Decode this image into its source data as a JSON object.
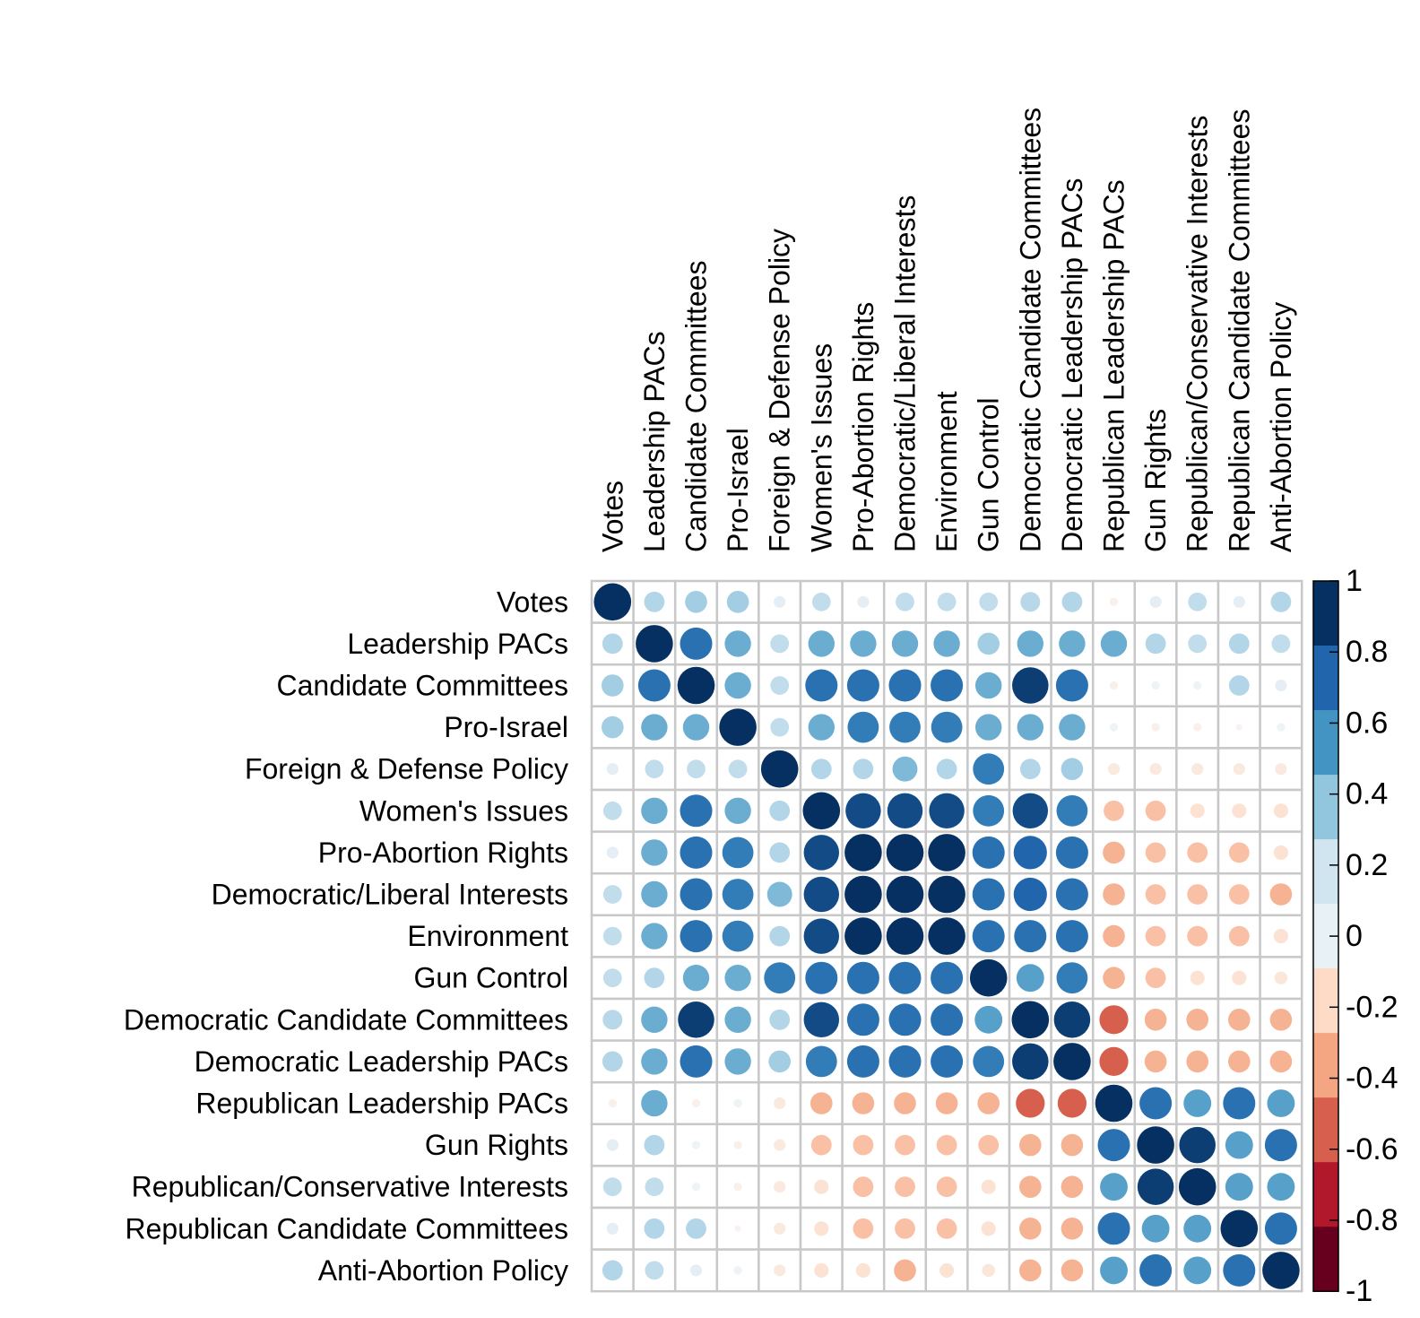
{
  "chart_data": {
    "type": "heatmap",
    "style": "correlation-circle-matrix",
    "title": "",
    "variables": [
      "Votes",
      "Leadership PACs",
      "Candidate Committees",
      "Pro-Israel",
      "Foreign & Defense Policy",
      "Women's Issues",
      "Pro-Abortion Rights",
      "Democratic/Liberal Interests",
      "Environment",
      "Gun Control",
      "Democratic Candidate Committees",
      "Democratic Leadership PACs",
      "Republican Leadership PACs",
      "Gun Rights",
      "Republican/Conservative Interests",
      "Republican Candidate Committees",
      "Anti-Abortion Policy"
    ],
    "matrix": [
      [
        1.0,
        0.3,
        0.35,
        0.35,
        0.1,
        0.25,
        0.1,
        0.25,
        0.25,
        0.25,
        0.28,
        0.3,
        -0.05,
        0.1,
        0.25,
        0.1,
        0.3
      ],
      [
        0.3,
        1.0,
        0.75,
        0.5,
        0.25,
        0.5,
        0.5,
        0.5,
        0.5,
        0.35,
        0.5,
        0.5,
        0.5,
        0.3,
        0.25,
        0.3,
        0.25
      ],
      [
        0.35,
        0.75,
        1.0,
        0.5,
        0.25,
        0.75,
        0.75,
        0.75,
        0.75,
        0.5,
        0.95,
        0.75,
        -0.05,
        0.05,
        0.05,
        0.3,
        0.1
      ],
      [
        0.35,
        0.5,
        0.5,
        1.0,
        0.25,
        0.5,
        0.7,
        0.7,
        0.7,
        0.5,
        0.5,
        0.5,
        0.05,
        -0.05,
        -0.05,
        -0.03,
        0.05
      ],
      [
        0.1,
        0.25,
        0.25,
        0.25,
        1.0,
        0.3,
        0.3,
        0.45,
        0.3,
        0.7,
        0.3,
        0.35,
        -0.1,
        -0.1,
        -0.1,
        -0.1,
        -0.1
      ],
      [
        0.25,
        0.5,
        0.75,
        0.5,
        0.3,
        1.0,
        0.9,
        0.9,
        0.9,
        0.7,
        0.9,
        0.7,
        -0.3,
        -0.3,
        -0.15,
        -0.15,
        -0.15
      ],
      [
        0.1,
        0.5,
        0.75,
        0.7,
        0.3,
        0.9,
        1.0,
        1.0,
        1.0,
        0.75,
        0.8,
        0.75,
        -0.35,
        -0.3,
        -0.3,
        -0.3,
        -0.15
      ],
      [
        0.25,
        0.5,
        0.75,
        0.7,
        0.45,
        0.9,
        1.0,
        1.0,
        1.0,
        0.75,
        0.8,
        0.75,
        -0.35,
        -0.3,
        -0.3,
        -0.3,
        -0.35
      ],
      [
        0.25,
        0.5,
        0.75,
        0.7,
        0.3,
        0.9,
        1.0,
        1.0,
        1.0,
        0.75,
        0.75,
        0.75,
        -0.35,
        -0.3,
        -0.3,
        -0.3,
        -0.15
      ],
      [
        0.25,
        0.3,
        0.5,
        0.5,
        0.7,
        0.75,
        0.75,
        0.75,
        0.75,
        1.0,
        0.55,
        0.7,
        -0.35,
        -0.3,
        -0.15,
        -0.15,
        -0.12
      ],
      [
        0.28,
        0.5,
        0.95,
        0.5,
        0.3,
        0.9,
        0.75,
        0.75,
        0.75,
        0.55,
        1.0,
        0.95,
        -0.6,
        -0.35,
        -0.35,
        -0.35,
        -0.35
      ],
      [
        0.3,
        0.5,
        0.75,
        0.5,
        0.35,
        0.7,
        0.75,
        0.75,
        0.75,
        0.7,
        0.95,
        1.0,
        -0.6,
        -0.35,
        -0.35,
        -0.35,
        -0.35
      ],
      [
        -0.05,
        0.5,
        -0.05,
        0.05,
        -0.1,
        -0.35,
        -0.35,
        -0.35,
        -0.35,
        -0.35,
        -0.6,
        -0.6,
        1.0,
        0.75,
        0.55,
        0.75,
        0.55
      ],
      [
        0.1,
        0.3,
        0.05,
        -0.05,
        -0.1,
        -0.3,
        -0.3,
        -0.3,
        -0.3,
        -0.3,
        -0.35,
        -0.35,
        0.75,
        1.0,
        0.95,
        0.55,
        0.75
      ],
      [
        0.25,
        0.25,
        0.05,
        -0.05,
        -0.1,
        -0.15,
        -0.3,
        -0.3,
        -0.3,
        -0.15,
        -0.35,
        -0.35,
        0.55,
        0.95,
        1.0,
        0.55,
        0.55
      ],
      [
        0.1,
        0.3,
        0.3,
        -0.03,
        -0.1,
        -0.15,
        -0.3,
        -0.3,
        -0.3,
        -0.15,
        -0.35,
        -0.35,
        0.75,
        0.55,
        0.55,
        1.0,
        0.75
      ],
      [
        0.3,
        0.25,
        0.1,
        0.05,
        -0.1,
        -0.15,
        -0.15,
        -0.35,
        -0.15,
        -0.12,
        -0.35,
        -0.35,
        0.55,
        0.75,
        0.55,
        0.75,
        1.0
      ]
    ],
    "color_range": [
      -1,
      1
    ],
    "colorbar_ticks": [
      "1",
      "0.8",
      "0.6",
      "0.4",
      "0.2",
      "0",
      "-0.2",
      "-0.4",
      "-0.6",
      "-0.8",
      "-1"
    ],
    "colorbar_colors": [
      "#67001F",
      "#B2182B",
      "#D6604D",
      "#F4A582",
      "#FDDBC7",
      "#E8F1F6",
      "#D1E5F0",
      "#92C5DE",
      "#4393C3",
      "#2166AC",
      "#053061"
    ],
    "legend_placement": "right"
  }
}
